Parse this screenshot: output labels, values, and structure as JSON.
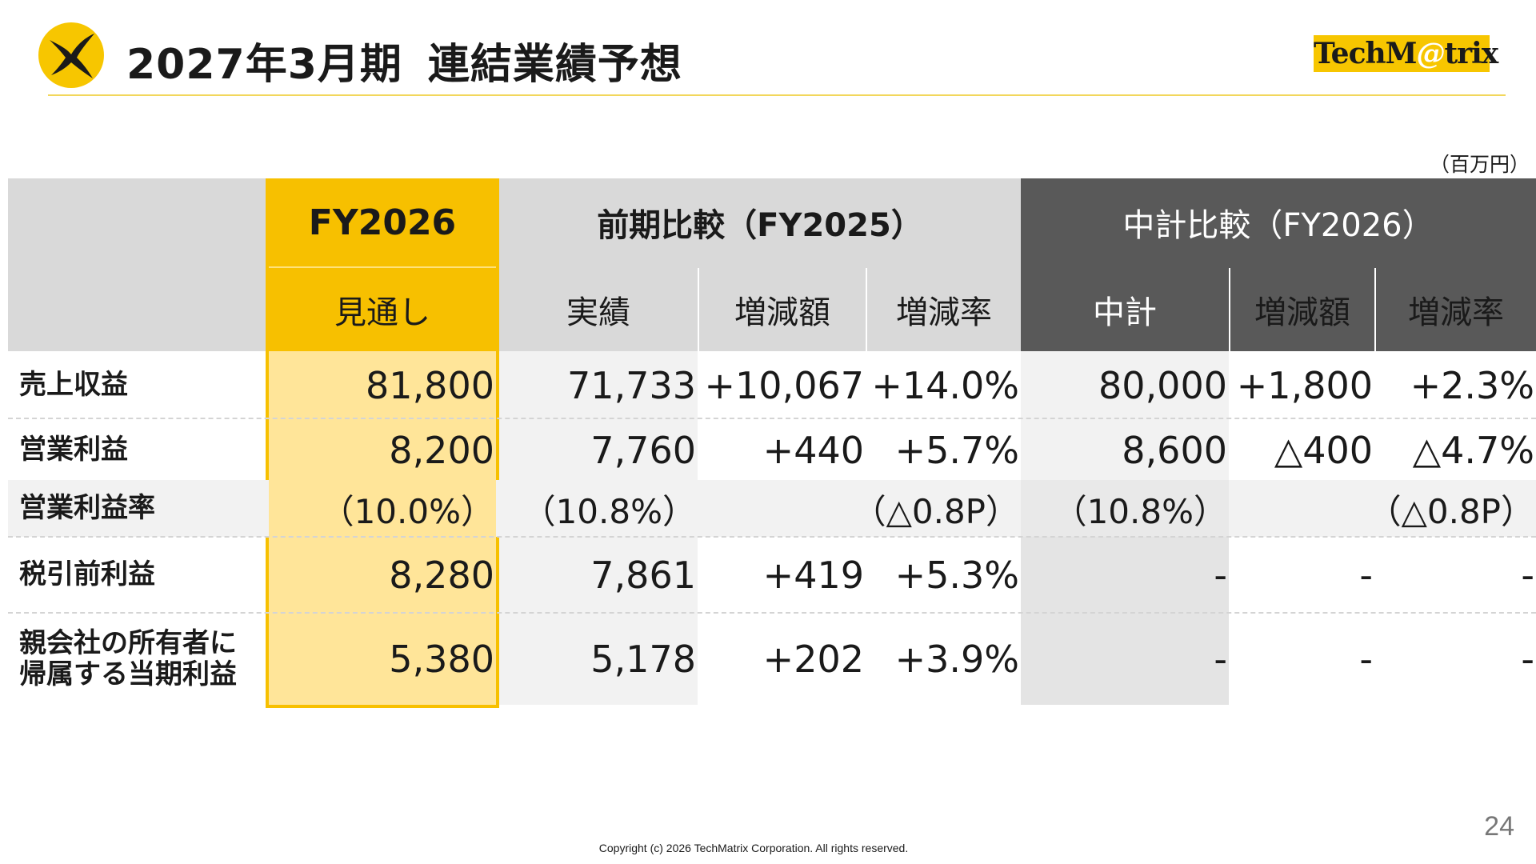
{
  "header": {
    "title_part1": "2027年3月期",
    "title_part2": "連結業績予想",
    "brand_pre": "TechM",
    "brand_at": "@",
    "brand_post": "trix"
  },
  "unit": "（百万円）",
  "table": {
    "group_headers": {
      "fy2026": "FY2026",
      "prev": "前期比較（FY2025）",
      "plan": "中計比較（FY2026）"
    },
    "sub_headers": {
      "forecast": "見通し",
      "actual": "実績",
      "prev_change": "増減額",
      "prev_rate": "増減率",
      "plan": "中計",
      "plan_change": "増減額",
      "plan_rate": "増減率"
    },
    "rows": [
      {
        "label": "売上収益",
        "forecast": "81,800",
        "actual": "71,733",
        "prev_change": "+10,067",
        "prev_rate": "+14.0%",
        "plan": "80,000",
        "plan_change": "+1,800",
        "plan_rate": "+2.3%"
      },
      {
        "label": "営業利益",
        "forecast": "8,200",
        "actual": "7,760",
        "prev_change": "+440",
        "prev_rate": "+5.7%",
        "plan": "8,600",
        "plan_change": "△400",
        "plan_rate": "△4.7%"
      },
      {
        "label": "営業利益率",
        "forecast": "（10.0%）",
        "actual": "（10.8%）",
        "prev_change": "",
        "prev_rate": "（△0.8P）",
        "plan": "（10.8%）",
        "plan_change": "",
        "plan_rate": "（△0.8P）"
      },
      {
        "label": "税引前利益",
        "forecast": "8,280",
        "actual": "7,861",
        "prev_change": "+419",
        "prev_rate": "+5.3%",
        "plan": "-",
        "plan_change": "-",
        "plan_rate": "-"
      },
      {
        "label_line1": "親会社の所有者に",
        "label_line2": "帰属する当期利益",
        "forecast": "5,380",
        "actual": "5,178",
        "prev_change": "+202",
        "prev_rate": "+3.9%",
        "plan": "-",
        "plan_change": "-",
        "plan_rate": "-"
      }
    ]
  },
  "footer": {
    "copyright": "Copyright (c) 2026 TechMatrix Corporation. All rights reserved.",
    "page": "24"
  },
  "colors": {
    "accent_yellow": "#f7c000",
    "light_yellow": "#ffe599",
    "dark_header": "#595959",
    "grey_header": "#d9d9d9",
    "light_grey": "#f2f2f2",
    "mid_grey": "#e4e4e4"
  }
}
